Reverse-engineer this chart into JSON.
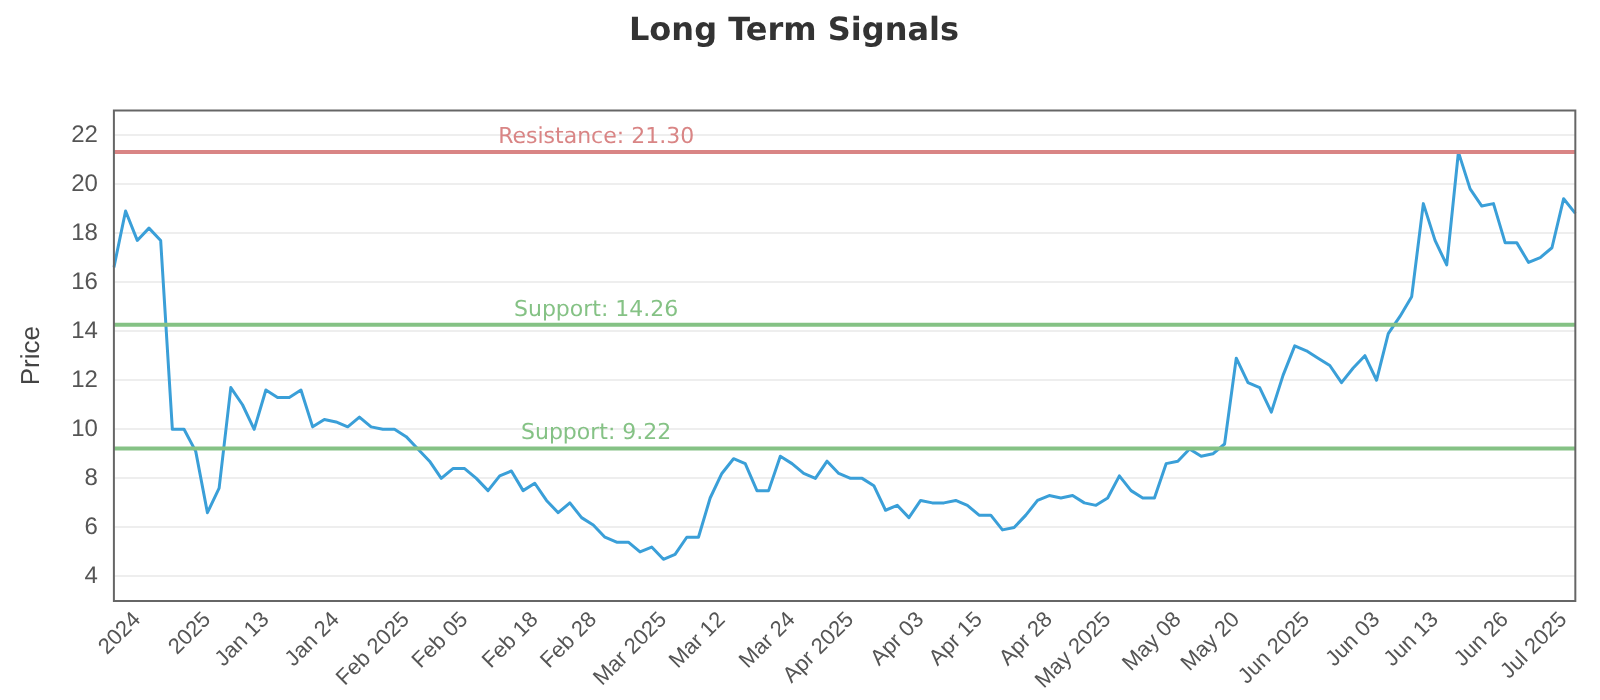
{
  "chart_data": {
    "type": "line",
    "title": "Long Term Signals",
    "ylabel": "Price",
    "categories": [
      null,
      null,
      "2024",
      null,
      null,
      null,
      null,
      null,
      "2025",
      null,
      null,
      null,
      null,
      "Jan 13",
      null,
      null,
      null,
      null,
      null,
      "Jan 24",
      null,
      null,
      null,
      null,
      null,
      "Feb 2025",
      null,
      null,
      null,
      null,
      "Feb 05",
      null,
      null,
      null,
      null,
      null,
      "Feb 18",
      null,
      null,
      null,
      null,
      "Feb 28",
      null,
      null,
      null,
      null,
      null,
      "Mar 2025",
      null,
      null,
      null,
      null,
      "Mar 12",
      null,
      null,
      null,
      null,
      null,
      "Mar 24",
      null,
      null,
      null,
      null,
      "Apr 2025",
      null,
      null,
      null,
      null,
      null,
      "Apr 03",
      null,
      null,
      null,
      null,
      "Apr 15",
      null,
      null,
      null,
      null,
      null,
      "Apr 28",
      null,
      null,
      null,
      null,
      "May 2025",
      null,
      null,
      null,
      null,
      null,
      "May 08",
      null,
      null,
      null,
      null,
      "May 20",
      null,
      null,
      null,
      null,
      null,
      "Jun 2025",
      null,
      null,
      null,
      null,
      null,
      "Jun 03",
      null,
      null,
      null,
      null,
      "Jun 13",
      null,
      null,
      null,
      null,
      null,
      "Jun 26",
      null,
      null,
      null,
      null,
      "Jul 2025",
      null
    ],
    "series": [
      {
        "color": "#3a9fd8",
        "values": [
          16.6,
          18.9,
          17.7,
          18.2,
          17.7,
          10.0,
          10.0,
          9.1,
          6.6,
          7.6,
          11.7,
          11.0,
          10.0,
          11.6,
          11.3,
          11.3,
          11.6,
          10.1,
          10.4,
          10.3,
          10.1,
          10.5,
          10.1,
          10.0,
          10.0,
          9.7,
          9.2,
          8.7,
          8.0,
          8.4,
          8.4,
          8.0,
          7.5,
          8.1,
          8.3,
          7.5,
          7.8,
          7.1,
          6.6,
          7.0,
          6.4,
          6.1,
          5.6,
          5.4,
          5.4,
          5.0,
          5.2,
          4.7,
          4.9,
          5.6,
          5.6,
          7.2,
          8.2,
          8.8,
          8.6,
          7.5,
          7.5,
          8.9,
          8.6,
          8.2,
          8.0,
          8.7,
          8.2,
          8.0,
          8.0,
          7.7,
          6.7,
          6.9,
          6.4,
          7.1,
          7.0,
          7.0,
          7.1,
          6.9,
          6.5,
          6.5,
          5.9,
          6.0,
          6.5,
          7.1,
          7.3,
          7.2,
          7.3,
          7.0,
          6.9,
          7.2,
          8.1,
          7.5,
          7.2,
          7.2,
          8.6,
          8.7,
          9.2,
          8.9,
          9.0,
          9.4,
          12.9,
          11.9,
          11.7,
          10.7,
          12.2,
          13.4,
          13.2,
          12.9,
          12.6,
          11.9,
          12.5,
          13.0,
          12.0,
          13.9,
          14.6,
          15.4,
          19.2,
          17.7,
          16.7,
          21.3,
          19.8,
          19.1,
          19.2,
          17.6,
          17.6,
          16.8,
          17.0,
          17.4,
          19.4,
          18.8
        ]
      }
    ],
    "ylim": [
      3,
      23
    ],
    "yticks": [
      4,
      6,
      8,
      10,
      12,
      14,
      16,
      18,
      20,
      22
    ],
    "grid": "y",
    "marker": "none",
    "line_style": "solid",
    "ref_lines": [
      {
        "axis": "y",
        "value": 21.3,
        "label": "Resistance: 21.30",
        "color": "#d98585"
      },
      {
        "axis": "y",
        "value": 14.26,
        "label": "Support: 14.26",
        "color": "#85c285"
      },
      {
        "axis": "y",
        "value": 9.22,
        "label": "Support: 9.22",
        "color": "#85c285"
      }
    ]
  }
}
